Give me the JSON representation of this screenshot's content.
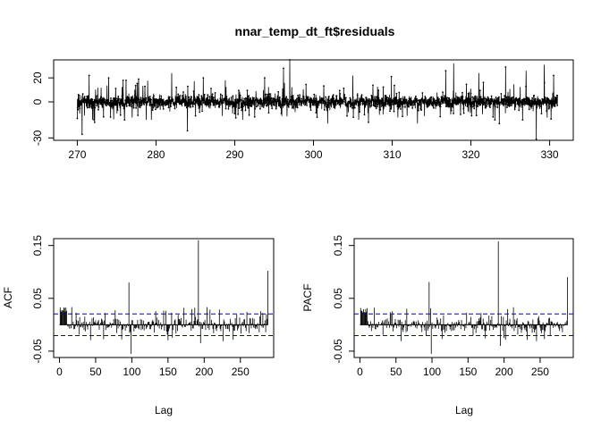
{
  "chart_data": [
    {
      "type": "line",
      "title": "nnar_temp_dt_ft$residuals",
      "xlabel": "",
      "ylabel": "",
      "xlim": [
        267,
        333
      ],
      "ylim": [
        -32,
        35
      ],
      "x_ticks": [
        270,
        280,
        290,
        300,
        310,
        320,
        330
      ],
      "y_ticks": [
        -30,
        0,
        20
      ],
      "x_range": [
        270,
        331
      ],
      "typical_range": [
        -10,
        10
      ],
      "spikes": [
        {
          "x": 270.6,
          "y": -27
        },
        {
          "x": 271.5,
          "y": 22
        },
        {
          "x": 272.2,
          "y": -17
        },
        {
          "x": 274.0,
          "y": 20
        },
        {
          "x": 276.2,
          "y": 18
        },
        {
          "x": 277.8,
          "y": 19
        },
        {
          "x": 279.4,
          "y": -15
        },
        {
          "x": 282.0,
          "y": 24
        },
        {
          "x": 284.0,
          "y": -24
        },
        {
          "x": 286.0,
          "y": 20
        },
        {
          "x": 288.8,
          "y": 18
        },
        {
          "x": 291.0,
          "y": -15
        },
        {
          "x": 293.8,
          "y": 20
        },
        {
          "x": 296.2,
          "y": 28
        },
        {
          "x": 297.0,
          "y": 35
        },
        {
          "x": 301.8,
          "y": -18
        },
        {
          "x": 305.0,
          "y": 22
        },
        {
          "x": 307.0,
          "y": -17
        },
        {
          "x": 309.9,
          "y": 21
        },
        {
          "x": 313.2,
          "y": -18
        },
        {
          "x": 316.8,
          "y": 26
        },
        {
          "x": 317.8,
          "y": 32
        },
        {
          "x": 321.0,
          "y": 24
        },
        {
          "x": 323.6,
          "y": -18
        },
        {
          "x": 324.4,
          "y": 29
        },
        {
          "x": 327.0,
          "y": 26
        },
        {
          "x": 328.3,
          "y": -31
        },
        {
          "x": 329.3,
          "y": 31
        },
        {
          "x": 330.5,
          "y": 22
        }
      ]
    },
    {
      "type": "bar",
      "title": "",
      "xlabel": "Lag",
      "ylabel": "ACF",
      "xlim": [
        -8,
        296
      ],
      "ylim": [
        -0.062,
        0.163
      ],
      "x_ticks": [
        0,
        50,
        100,
        150,
        200,
        250
      ],
      "y_ticks": [
        -0.05,
        0.05,
        0.15
      ],
      "max_lag": 288,
      "confidence_bound": 0.0205,
      "spikes": [
        {
          "lag": 96,
          "value": 0.08
        },
        {
          "lag": 99,
          "value": -0.055
        },
        {
          "lag": 192,
          "value": 0.16
        },
        {
          "lag": 195,
          "value": -0.035
        },
        {
          "lag": 288,
          "value": 0.102
        }
      ]
    },
    {
      "type": "bar",
      "title": "",
      "xlabel": "Lag",
      "ylabel": "PACF",
      "xlim": [
        -8,
        296
      ],
      "ylim": [
        -0.062,
        0.163
      ],
      "x_ticks": [
        0,
        50,
        100,
        150,
        200,
        250
      ],
      "y_ticks": [
        -0.05,
        0.05,
        0.15
      ],
      "max_lag": 288,
      "confidence_bound": 0.0205,
      "spikes": [
        {
          "lag": 96,
          "value": 0.081
        },
        {
          "lag": 99,
          "value": -0.055
        },
        {
          "lag": 192,
          "value": 0.158
        },
        {
          "lag": 195,
          "value": -0.04
        },
        {
          "lag": 288,
          "value": 0.09
        }
      ]
    }
  ],
  "colors": {
    "series": "#000000",
    "confidence_line": "#0000cd",
    "axes": "#000000",
    "background": "#ffffff"
  }
}
